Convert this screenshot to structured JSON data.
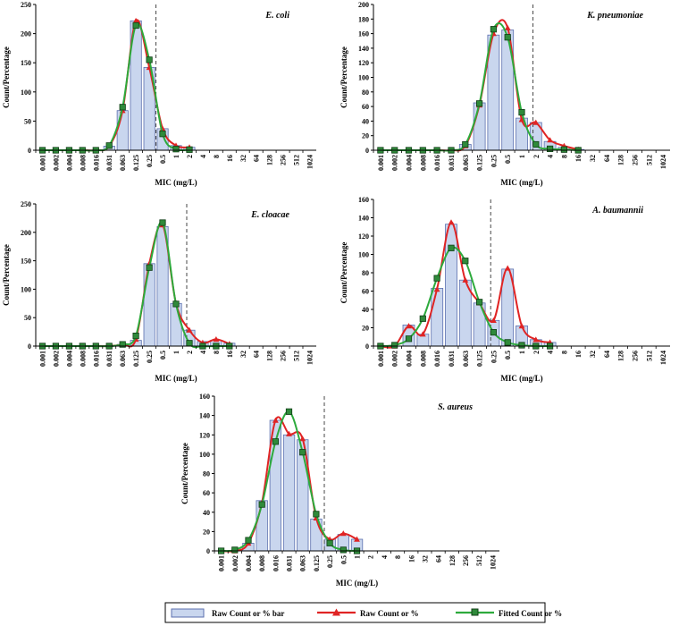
{
  "mic_categories": [
    "0.001",
    "0.002",
    "0.004",
    "0.008",
    "0.016",
    "0.031",
    "0.063",
    "0.125",
    "0.25",
    "0.5",
    "1",
    "2",
    "4",
    "8",
    "16",
    "32",
    "64",
    "128",
    "256",
    "512",
    "1024"
  ],
  "colors": {
    "bar_fill": "#c9d6ee",
    "bar_stroke": "#5b6fae",
    "raw_line": "#e02424",
    "fitted_line": "#2daa3c",
    "fitted_marker_fill": "#2f8a3a",
    "fitted_marker_stroke": "#0f3d15",
    "axis": "#000000",
    "cutoff_line": "#333333"
  },
  "legend": {
    "bar_label": "Raw Count or % bar",
    "raw_label": "Raw Count or %",
    "fitted_label": "Fitted Count or %"
  },
  "chart_data": [
    {
      "type": "bar",
      "title": "E. coli",
      "xlabel": "MIC (mg/L)",
      "ylabel": "Count/Percentage",
      "ylim": [
        0,
        250
      ],
      "yticks": [
        0,
        50,
        100,
        150,
        200,
        250
      ],
      "categories": [
        "0.001",
        "0.002",
        "0.004",
        "0.008",
        "0.016",
        "0.031",
        "0.063",
        "0.125",
        "0.25",
        "0.5",
        "1",
        "2",
        "4",
        "8",
        "16",
        "32",
        "64",
        "128",
        "256",
        "512",
        "1024"
      ],
      "cutoff_category_index": 8.5,
      "series": [
        {
          "name": "Raw Count or % bar",
          "values": [
            0,
            0,
            0,
            0,
            0,
            7,
            68,
            222,
            142,
            37,
            8,
            5,
            0,
            0,
            0,
            0,
            0,
            0,
            0,
            0,
            0
          ]
        },
        {
          "name": "Raw Count or %",
          "values": [
            0,
            0,
            0,
            0,
            0,
            7,
            68,
            222,
            142,
            37,
            8,
            5,
            null,
            null,
            null,
            null,
            null,
            null,
            null,
            null,
            null
          ]
        },
        {
          "name": "Fitted Count or %",
          "values": [
            0,
            0,
            0,
            0,
            0,
            8,
            74,
            214,
            155,
            28,
            2,
            1,
            null,
            null,
            null,
            null,
            null,
            null,
            null,
            null,
            null
          ]
        }
      ]
    },
    {
      "type": "bar",
      "title": "K. pneumoniae",
      "xlabel": "MIC (mg/L)",
      "ylabel": "Count/Percentage",
      "ylim": [
        0,
        200
      ],
      "yticks": [
        0,
        20,
        40,
        60,
        80,
        100,
        120,
        140,
        160,
        180,
        200
      ],
      "categories": [
        "0.001",
        "0.002",
        "0.004",
        "0.008",
        "0.016",
        "0.031",
        "0.063",
        "0.125",
        "0.25",
        "0.5",
        "1",
        "2",
        "4",
        "8",
        "16",
        "32",
        "64",
        "128",
        "256",
        "512",
        "1024"
      ],
      "cutoff_category_index": 10.8,
      "series": [
        {
          "name": "Raw Count or % bar",
          "values": [
            0,
            0,
            0,
            0,
            0,
            0,
            8,
            65,
            158,
            165,
            44,
            38,
            12,
            4,
            1,
            0,
            0,
            0,
            0,
            0,
            0
          ]
        },
        {
          "name": "Raw Count or %",
          "values": [
            0,
            0,
            0,
            0,
            0,
            0,
            6,
            62,
            160,
            168,
            42,
            38,
            14,
            6,
            1,
            null,
            null,
            null,
            null,
            null,
            null
          ]
        },
        {
          "name": "Fitted Count or %",
          "values": [
            0,
            0,
            0,
            0,
            0,
            0,
            8,
            64,
            166,
            155,
            52,
            8,
            2,
            1,
            0,
            null,
            null,
            null,
            null,
            null,
            null
          ]
        }
      ]
    },
    {
      "type": "bar",
      "title": "E. cloacae",
      "xlabel": "MIC (mg/L)",
      "ylabel": "Count/Percentage",
      "ylim": [
        0,
        250
      ],
      "yticks": [
        0,
        50,
        100,
        150,
        200,
        250
      ],
      "categories": [
        "0.001",
        "0.002",
        "0.004",
        "0.008",
        "0.016",
        "0.031",
        "0.063",
        "0.125",
        "0.25",
        "0.5",
        "1",
        "2",
        "4",
        "8",
        "16",
        "32",
        "64",
        "128",
        "256",
        "512",
        "1024"
      ],
      "cutoff_category_index": 10.8,
      "series": [
        {
          "name": "Raw Count or % bar",
          "values": [
            0,
            0,
            0,
            0,
            0,
            0,
            3,
            10,
            145,
            210,
            75,
            28,
            8,
            10,
            5,
            0,
            0,
            0,
            0,
            0,
            0
          ]
        },
        {
          "name": "Raw Count or %",
          "values": [
            0,
            0,
            0,
            0,
            0,
            0,
            3,
            12,
            145,
            213,
            75,
            28,
            6,
            12,
            4,
            null,
            null,
            null,
            null,
            null,
            null
          ]
        },
        {
          "name": "Fitted Count or %",
          "values": [
            0,
            0,
            0,
            0,
            0,
            0,
            3,
            18,
            138,
            217,
            74,
            5,
            0,
            0,
            0,
            null,
            null,
            null,
            null,
            null,
            null
          ]
        }
      ]
    },
    {
      "type": "bar",
      "title": "A. baumannii",
      "xlabel": "MIC (mg/L)",
      "ylabel": "Count/Percentage",
      "ylim": [
        0,
        160
      ],
      "yticks": [
        0,
        20,
        40,
        60,
        80,
        100,
        120,
        140,
        160
      ],
      "categories": [
        "0.001",
        "0.002",
        "0.004",
        "0.008",
        "0.016",
        "0.031",
        "0.063",
        "0.125",
        "0.25",
        "0.5",
        "1",
        "2",
        "4",
        "8",
        "16",
        "32",
        "64",
        "128",
        "256",
        "512",
        "1024"
      ],
      "cutoff_category_index": 7.8,
      "series": [
        {
          "name": "Raw Count or % bar",
          "values": [
            0,
            0,
            23,
            13,
            63,
            133,
            72,
            47,
            28,
            84,
            22,
            7,
            4,
            0,
            0,
            0,
            0,
            0,
            0,
            0,
            0
          ]
        },
        {
          "name": "Raw Count or %",
          "values": [
            0,
            0,
            22,
            13,
            62,
            135,
            72,
            47,
            28,
            85,
            22,
            7,
            4,
            null,
            null,
            null,
            null,
            null,
            null,
            null,
            null
          ]
        },
        {
          "name": "Fitted Count or %",
          "values": [
            0,
            1,
            8,
            30,
            74,
            107,
            93,
            48,
            15,
            4,
            1,
            0,
            0,
            null,
            null,
            null,
            null,
            null,
            null,
            null,
            null
          ]
        }
      ]
    },
    {
      "type": "bar",
      "title": "S. aureus",
      "xlabel": "MIC (mg/L)",
      "ylabel": "Count/Percentage",
      "ylim": [
        0,
        160
      ],
      "yticks": [
        0,
        20,
        40,
        60,
        80,
        100,
        120,
        140,
        160
      ],
      "categories": [
        "0.001",
        "0.002",
        "0.004",
        "0.008",
        "0.016",
        "0.031",
        "0.063",
        "0.125",
        "0.25",
        "0.5",
        "1",
        "2",
        "4",
        "8",
        "16",
        "32",
        "64",
        "128",
        "256",
        "512",
        "1024"
      ],
      "cutoff_category_index": 7.6,
      "series": [
        {
          "name": "Raw Count or % bar",
          "values": [
            0,
            0,
            8,
            52,
            135,
            120,
            115,
            33,
            12,
            17,
            12,
            0,
            0,
            0,
            0,
            0,
            0,
            0,
            0,
            0,
            0
          ]
        },
        {
          "name": "Raw Count or %",
          "values": [
            0,
            0,
            8,
            50,
            135,
            121,
            116,
            34,
            12,
            18,
            12,
            null,
            null,
            null,
            null,
            null,
            null,
            null,
            null,
            null,
            null
          ]
        },
        {
          "name": "Fitted Count or %",
          "values": [
            0,
            1,
            11,
            48,
            113,
            144,
            102,
            38,
            8,
            1,
            0,
            null,
            null,
            null,
            null,
            null,
            null,
            null,
            null,
            null,
            null
          ]
        }
      ]
    }
  ]
}
